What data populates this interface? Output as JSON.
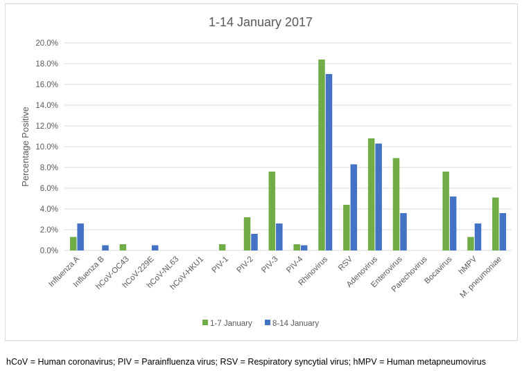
{
  "chart_data": {
    "type": "bar",
    "title": "1-14 January 2017",
    "xlabel": "",
    "ylabel": "Percentage Positive",
    "ylim": [
      0,
      20
    ],
    "yticks": [
      "0.0%",
      "2.0%",
      "4.0%",
      "6.0%",
      "8.0%",
      "10.0%",
      "12.0%",
      "14.0%",
      "16.0%",
      "18.0%",
      "20.0%"
    ],
    "grid": true,
    "legend_position": "bottom",
    "categories": [
      "Influenza A",
      "Influenza B",
      "hCoV-OC43",
      "hCoV-229E",
      "hCoV-NL63",
      "hCoV-HKU1",
      "PIV-1",
      "PIV-2",
      "PIV-3",
      "PIV-4",
      "Rhinovirus",
      "RSV",
      "Adenovirus",
      "Enterovirus",
      "Parechovirus",
      "Bocavirus",
      "hMPV",
      "M. pneumoniae"
    ],
    "series": [
      {
        "name": "1-7 January",
        "color": "#70ad47",
        "values": [
          1.3,
          0,
          0.6,
          0,
          0,
          0,
          0.6,
          3.2,
          7.6,
          0.6,
          18.4,
          4.4,
          10.8,
          8.9,
          0,
          7.6,
          1.3,
          5.1
        ]
      },
      {
        "name": "8-14 January",
        "color": "#4472c4",
        "values": [
          2.6,
          0.5,
          0,
          0.5,
          0,
          0,
          0,
          1.6,
          2.6,
          0.5,
          17.0,
          8.3,
          10.3,
          3.6,
          0,
          5.2,
          2.6,
          3.6
        ]
      }
    ]
  },
  "footnote": "hCoV = Human coronavirus; PIV = Parainfluenza virus; RSV = Respiratory syncytial virus; hMPV = Human metapneumovirus"
}
